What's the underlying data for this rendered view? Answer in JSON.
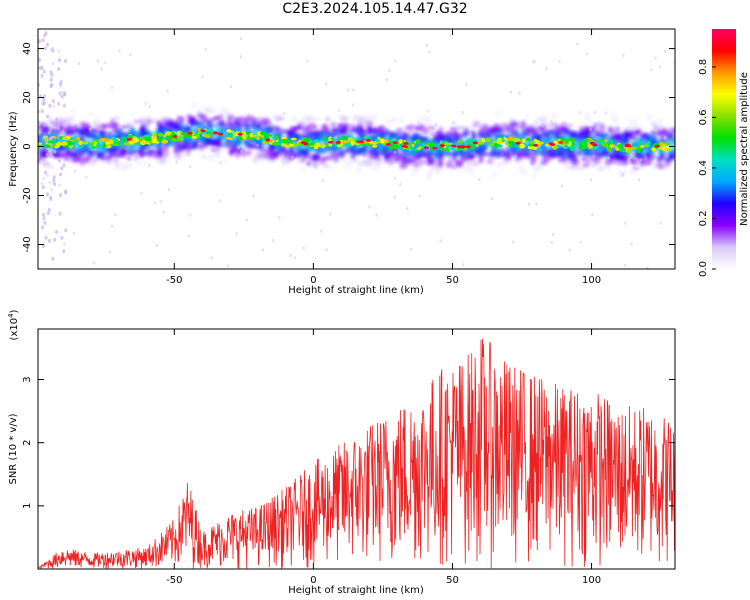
{
  "title": "C2E3.2024.105.14.47.G32",
  "chart_data": [
    {
      "type": "heatmap",
      "xlabel": "Height of straight line (km)",
      "ylabel": "Frequency (Hz)",
      "xlim": [
        -99,
        130
      ],
      "ylim": [
        -50,
        48
      ],
      "xticks": [
        -50,
        0,
        50,
        100
      ],
      "yticks": [
        -40,
        -20,
        0,
        20,
        40
      ],
      "colorbar": {
        "label": "Normalized spectral amplitude",
        "range": [
          0,
          0.95
        ],
        "ticks": [
          0.0,
          0.2,
          0.4,
          0.6,
          0.8
        ],
        "tick_labels": [
          "0.0",
          "0.2",
          "0.4",
          "0.6",
          "0.8"
        ],
        "colors": [
          "#ffffff",
          "#d8c8f8",
          "#8800ff",
          "#2200ff",
          "#00a8ff",
          "#00e0c0",
          "#00e000",
          "#88e000",
          "#ffff00",
          "#ff9900",
          "#ff0000",
          "#ff0066"
        ]
      },
      "ridge_center_hz": [
        [
          -98,
          2
        ],
        [
          -90,
          2
        ],
        [
          -80,
          1
        ],
        [
          -70,
          2
        ],
        [
          -60,
          3
        ],
        [
          -50,
          4
        ],
        [
          -40,
          6
        ],
        [
          -30,
          5
        ],
        [
          -20,
          4
        ],
        [
          -10,
          2
        ],
        [
          0,
          1
        ],
        [
          10,
          2
        ],
        [
          20,
          2
        ],
        [
          30,
          1
        ],
        [
          40,
          0
        ],
        [
          50,
          0
        ],
        [
          60,
          1
        ],
        [
          70,
          2
        ],
        [
          80,
          1
        ],
        [
          90,
          1
        ],
        [
          100,
          1
        ],
        [
          110,
          0
        ],
        [
          120,
          0
        ],
        [
          130,
          0
        ]
      ],
      "grid": false
    },
    {
      "type": "line",
      "xlabel": "Height of straight line (km)",
      "ylabel": "SNR (10 * v/v)",
      "y_multiplier": "(x10⁴)",
      "xlim": [
        -99,
        130
      ],
      "ylim": [
        0,
        3.8
      ],
      "xticks": [
        -50,
        0,
        50,
        100
      ],
      "yticks": [
        1,
        2,
        3
      ],
      "series": [
        {
          "color": "#ee2222",
          "envelope": {
            "x": [
              -99,
              -90,
              -80,
              -70,
              -60,
              -50,
              -45,
              -40,
              -30,
              -20,
              -10,
              0,
              10,
              20,
              30,
              40,
              45,
              50,
              55,
              60,
              70,
              80,
              90,
              100,
              110,
              120,
              130
            ],
            "y": [
              0.02,
              0.35,
              0.25,
              0.3,
              0.35,
              0.8,
              1.45,
              0.6,
              0.9,
              1.0,
              1.3,
              1.7,
              2.0,
              2.3,
              2.6,
              2.9,
              3.2,
              3.3,
              3.4,
              3.75,
              3.3,
              3.1,
              2.9,
              2.9,
              2.6,
              2.6,
              2.4
            ]
          }
        }
      ],
      "grid": false
    }
  ]
}
